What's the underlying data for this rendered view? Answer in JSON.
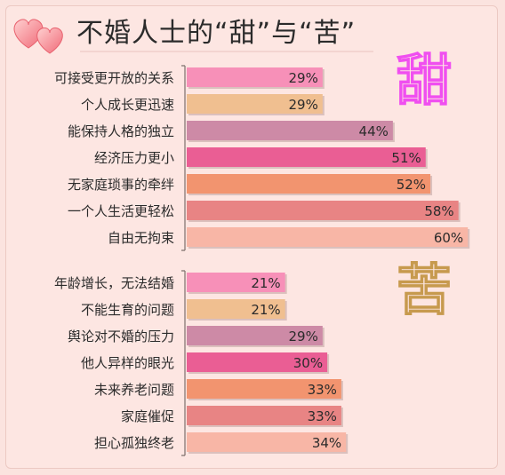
{
  "title": "不婚人士的“甜”与“苦”",
  "colors": {
    "bar_palette": [
      "#f790b8",
      "#f0bf90",
      "#cd8aa6",
      "#ea5e94",
      "#f2946f",
      "#e88484",
      "#f8b6a6"
    ],
    "sweet_char_stroke": "#f04ff0",
    "bitter_char_stroke": "#c79a4e",
    "text": "#2b2b2b"
  },
  "icons": [
    "two-hearts-icon"
  ],
  "chart_data": [
    {
      "type": "bar",
      "orientation": "horizontal",
      "section_label": "甜",
      "categories": [
        "可接受更开放的关系",
        "个人成长更迅速",
        "能保持人格的独立",
        "经济压力更小",
        "无家庭琐事的牵绊",
        "一个人生活更轻松",
        "自由无拘束"
      ],
      "values": [
        29,
        29,
        44,
        51,
        52,
        58,
        60
      ],
      "labels": [
        "29%",
        "29%",
        "44%",
        "51%",
        "52%",
        "58%",
        "60%"
      ],
      "unit": "%",
      "xlim": [
        0,
        60
      ]
    },
    {
      "type": "bar",
      "orientation": "horizontal",
      "section_label": "苦",
      "categories": [
        "年龄增长，无法结婚",
        "不能生育的问题",
        "舆论对不婚的压力",
        "他人异样的眼光",
        "未来养老问题",
        "家庭催促",
        "担心孤独终老"
      ],
      "values": [
        21,
        21,
        29,
        30,
        33,
        33,
        34
      ],
      "labels": [
        "21%",
        "21%",
        "29%",
        "30%",
        "33%",
        "33%",
        "34%"
      ],
      "unit": "%",
      "xlim": [
        0,
        60
      ]
    }
  ]
}
